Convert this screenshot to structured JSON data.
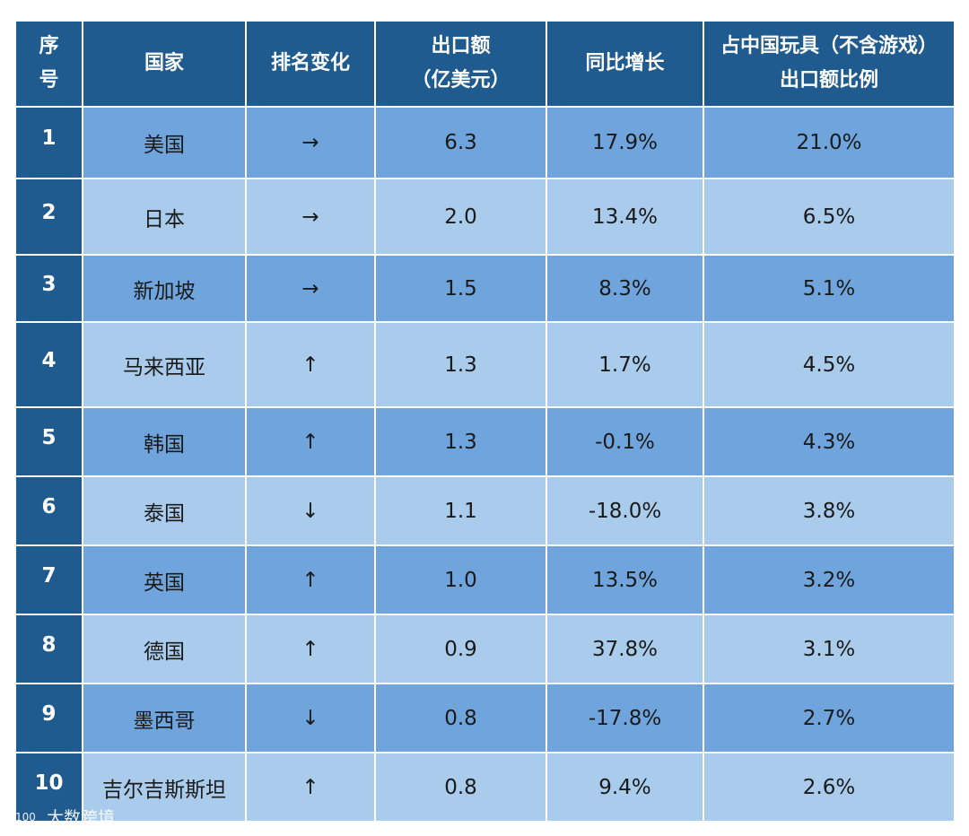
{
  "headers": [
    {
      "line1": "序",
      "line2": "号"
    },
    {
      "line1": "国家",
      "line2": ""
    },
    {
      "line1": "排名变化",
      "line2": ""
    },
    {
      "line1": "出口额",
      "line2": "（亿美元）"
    },
    {
      "line1": "同比增长",
      "line2": ""
    },
    {
      "line1": "占中国玩具（不含游戏）",
      "line2": "出口额比例"
    }
  ],
  "rows": [
    {
      "idx": "1",
      "country": "美国",
      "rank_change": "→",
      "export": "6.3",
      "growth": "17.9%",
      "share": "21.0%"
    },
    {
      "idx": "2",
      "country": "日本",
      "rank_change": "→",
      "export": "2.0",
      "growth": "13.4%",
      "share": "6.5%"
    },
    {
      "idx": "3",
      "country": "新加坡",
      "rank_change": "→",
      "export": "1.5",
      "growth": "8.3%",
      "share": "5.1%"
    },
    {
      "idx": "4",
      "country": "马来西亚",
      "rank_change": "↑",
      "export": "1.3",
      "growth": "1.7%",
      "share": "4.5%"
    },
    {
      "idx": "5",
      "country": "韩国",
      "rank_change": "↑",
      "export": "1.3",
      "growth": "-0.1%",
      "share": "4.3%"
    },
    {
      "idx": "6",
      "country": "泰国",
      "rank_change": "↓",
      "export": "1.1",
      "growth": "-18.0%",
      "share": "3.8%"
    },
    {
      "idx": "7",
      "country": "英国",
      "rank_change": "↑",
      "export": "1.0",
      "growth": "13.5%",
      "share": "3.2%"
    },
    {
      "idx": "8",
      "country": "德国",
      "rank_change": "↑",
      "export": "0.9",
      "growth": "37.8%",
      "share": "3.1%"
    },
    {
      "idx": "9",
      "country": "墨西哥",
      "rank_change": "↓",
      "export": "0.8",
      "growth": "-17.8%",
      "share": "2.7%"
    },
    {
      "idx": "10",
      "country": "吉尔吉斯斯坦",
      "rank_change": "↑",
      "export": "0.8",
      "growth": "9.4%",
      "share": "2.6%"
    }
  ],
  "watermark": {
    "logo": "100",
    "text": "大数跨境"
  },
  "colors": {
    "header": "#1f5b8e",
    "row_dark": "#6fa5dc",
    "row_light": "#a9cbec"
  }
}
